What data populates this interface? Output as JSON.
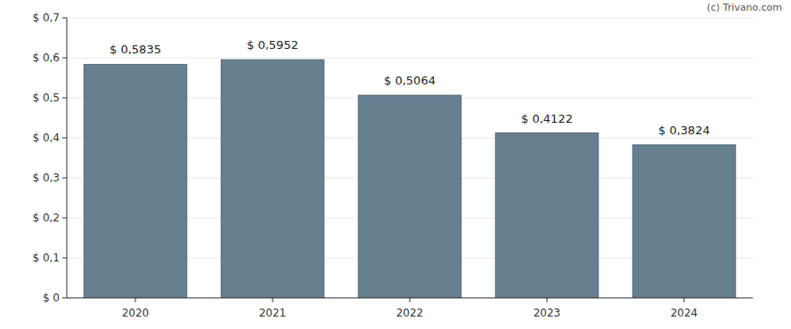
{
  "chart_data": {
    "type": "bar",
    "categories": [
      "2020",
      "2021",
      "2022",
      "2023",
      "2024"
    ],
    "values": [
      0.5835,
      0.5952,
      0.5064,
      0.4122,
      0.3824
    ],
    "value_labels": [
      "$ 0,5835",
      "$ 0,5952",
      "$ 0,5064",
      "$ 0,4122",
      "$ 0,3824"
    ],
    "color": "#667f91",
    "ylim": [
      0,
      0.7
    ],
    "yticks": [
      {
        "value": 0,
        "label": "$ 0"
      },
      {
        "value": 0.1,
        "label": "$ 0,1"
      },
      {
        "value": 0.2,
        "label": "$ 0,2"
      },
      {
        "value": 0.3,
        "label": "$ 0,3"
      },
      {
        "value": 0.4,
        "label": "$ 0,4"
      },
      {
        "value": 0.5,
        "label": "$ 0,5"
      },
      {
        "value": 0.6,
        "label": "$ 0,6"
      },
      {
        "value": 0.7,
        "label": "$ 0,7"
      }
    ],
    "grid": true,
    "data_labels": true,
    "annotations": [
      "(c) Trivano.com"
    ]
  }
}
